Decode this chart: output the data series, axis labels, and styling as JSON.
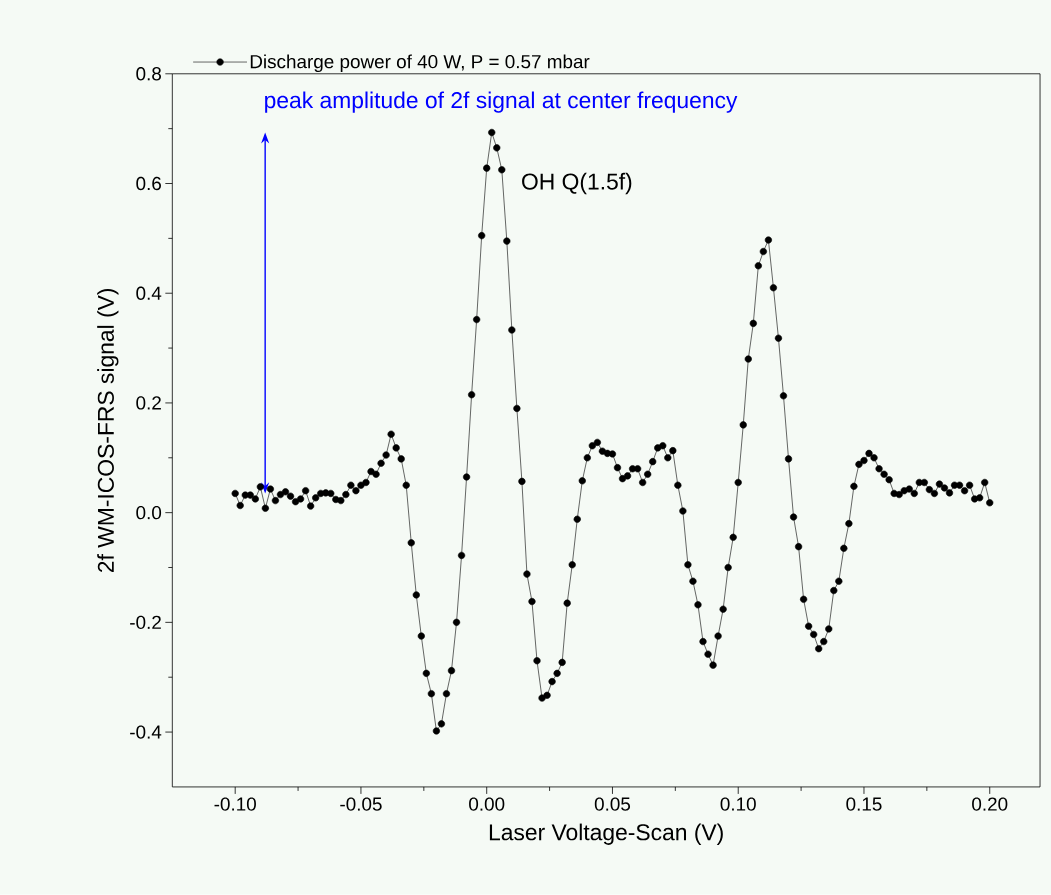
{
  "chart_data": {
    "type": "line",
    "xlabel": "Laser Voltage-Scan (V)",
    "ylabel": "2f WM-ICOS-FRS signal (V)",
    "xlim": [
      -0.125,
      0.22
    ],
    "ylim": [
      -0.5,
      0.8
    ],
    "xticks": [
      {
        "value": -0.1,
        "label": "-0.10"
      },
      {
        "value": -0.05,
        "label": "-0.05"
      },
      {
        "value": 0,
        "label": "0.00"
      },
      {
        "value": 0.05,
        "label": "0.05"
      },
      {
        "value": 0.1,
        "label": "0.10"
      },
      {
        "value": 0.15,
        "label": "0.15"
      },
      {
        "value": 0.2,
        "label": "0.20"
      }
    ],
    "yticks": [
      {
        "value": -0.4,
        "label": "-0.4"
      },
      {
        "value": -0.2,
        "label": "-0.2"
      },
      {
        "value": 0,
        "label": "0.0"
      },
      {
        "value": 0.2,
        "label": "0.2"
      },
      {
        "value": 0.4,
        "label": "0.4"
      },
      {
        "value": 0.6,
        "label": "0.6"
      },
      {
        "value": 0.8,
        "label": "0.8"
      }
    ],
    "grid": false,
    "legend": "top",
    "marker": "circle",
    "line_style": "solid",
    "annotations": [
      "peak amplitude of 2f signal at center frequency",
      {
        "text": "OH Q(1.5f)",
        "x": 0.008,
        "y": 0.6
      }
    ],
    "x": [
      -0.1,
      -0.098,
      -0.096,
      -0.094,
      -0.092,
      -0.09,
      -0.088,
      -0.086,
      -0.084,
      -0.082,
      -0.08,
      -0.078,
      -0.076,
      -0.074,
      -0.072,
      -0.07,
      -0.068,
      -0.066,
      -0.064,
      -0.062,
      -0.06,
      -0.058,
      -0.056,
      -0.054,
      -0.052,
      -0.05,
      -0.048,
      -0.046,
      -0.044,
      -0.042,
      -0.04,
      -0.038,
      -0.036,
      -0.034,
      -0.032,
      -0.03,
      -0.028,
      -0.026,
      -0.024,
      -0.022,
      -0.02,
      -0.018,
      -0.016,
      -0.014,
      -0.012,
      -0.01,
      -0.008,
      -0.006,
      -0.004,
      -0.002,
      0.0,
      0.002,
      0.004,
      0.006,
      0.008,
      0.01,
      0.012,
      0.014,
      0.016,
      0.018,
      0.02,
      0.022,
      0.024,
      0.026,
      0.028,
      0.03,
      0.032,
      0.034,
      0.036,
      0.038,
      0.04,
      0.042,
      0.044,
      0.046,
      0.048,
      0.05,
      0.052,
      0.054,
      0.056,
      0.058,
      0.06,
      0.062,
      0.064,
      0.066,
      0.068,
      0.07,
      0.072,
      0.074,
      0.076,
      0.078,
      0.08,
      0.082,
      0.084,
      0.086,
      0.088,
      0.09,
      0.092,
      0.094,
      0.096,
      0.098,
      0.1,
      0.102,
      0.104,
      0.106,
      0.108,
      0.11,
      0.112,
      0.114,
      0.116,
      0.118,
      0.12,
      0.122,
      0.124,
      0.126,
      0.128,
      0.13,
      0.132,
      0.134,
      0.136,
      0.138,
      0.14,
      0.142,
      0.144,
      0.146,
      0.148,
      0.15,
      0.152,
      0.154,
      0.156,
      0.158,
      0.16,
      0.162,
      0.164,
      0.166,
      0.168,
      0.17,
      0.172,
      0.174,
      0.176,
      0.178,
      0.18,
      0.182,
      0.184,
      0.186,
      0.188,
      0.19,
      0.192,
      0.194,
      0.196,
      0.198,
      0.2
    ],
    "series": [
      {
        "name": "Discharge power of 40 W, P = 0.57 mbar",
        "color": "#000000",
        "values": [
          0.035,
          0.013,
          0.032,
          0.032,
          0.025,
          0.047,
          0.008,
          0.043,
          0.022,
          0.033,
          0.038,
          0.03,
          0.02,
          0.025,
          0.04,
          0.012,
          0.027,
          0.035,
          0.036,
          0.035,
          0.024,
          0.022,
          0.033,
          0.05,
          0.04,
          0.05,
          0.055,
          0.075,
          0.07,
          0.09,
          0.105,
          0.143,
          0.118,
          0.098,
          0.05,
          -0.055,
          -0.15,
          -0.225,
          -0.293,
          -0.33,
          -0.398,
          -0.385,
          -0.33,
          -0.288,
          -0.2,
          -0.078,
          0.065,
          0.215,
          0.352,
          0.505,
          0.628,
          0.693,
          0.665,
          0.625,
          0.495,
          0.333,
          0.19,
          0.057,
          -0.112,
          -0.162,
          -0.27,
          -0.338,
          -0.333,
          -0.308,
          -0.293,
          -0.273,
          -0.165,
          -0.095,
          -0.012,
          0.058,
          0.1,
          0.122,
          0.128,
          0.112,
          0.108,
          0.107,
          0.082,
          0.062,
          0.067,
          0.08,
          0.08,
          0.055,
          0.07,
          0.093,
          0.118,
          0.122,
          0.1,
          0.113,
          0.05,
          0.003,
          -0.095,
          -0.125,
          -0.168,
          -0.235,
          -0.258,
          -0.278,
          -0.225,
          -0.176,
          -0.1,
          -0.045,
          0.055,
          0.16,
          0.28,
          0.345,
          0.45,
          0.476,
          0.497,
          0.41,
          0.318,
          0.213,
          0.098,
          -0.008,
          -0.062,
          -0.158,
          -0.207,
          -0.222,
          -0.248,
          -0.235,
          -0.212,
          -0.142,
          -0.125,
          -0.065,
          -0.02,
          0.048,
          0.088,
          0.095,
          0.108,
          0.1,
          0.08,
          0.07,
          0.06,
          0.035,
          0.033,
          0.04,
          0.043,
          0.035,
          0.055,
          0.055,
          0.042,
          0.035,
          0.052,
          0.045,
          0.036,
          0.05,
          0.05,
          0.04,
          0.05,
          0.025,
          0.027,
          0.055,
          0.018
        ]
      }
    ]
  }
}
